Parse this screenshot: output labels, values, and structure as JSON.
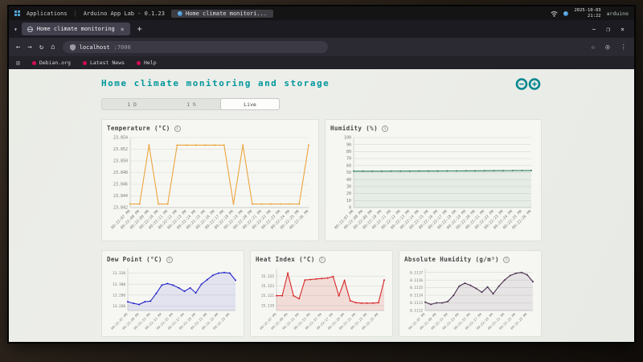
{
  "taskbar": {
    "applications_label": "Applications",
    "app_title": "Arduino App Lab - 0.1.23",
    "window_button": "Home climate monitori...",
    "clock_date": "2025-10-03",
    "clock_time": "21:22",
    "device_name": "arduino"
  },
  "browser": {
    "tab_title": "Home climate monitoring",
    "new_tab_label": "+",
    "url_host": "localhost",
    "url_port": ":7000",
    "bookmarks": [
      "Debian.org",
      "Latest News",
      "Help"
    ],
    "window_controls": {
      "minimize": "−",
      "maximize": "❐",
      "close": "×"
    }
  },
  "page": {
    "title": "Home climate monitoring and storage",
    "range_buttons": [
      {
        "label": "1 D",
        "active": false
      },
      {
        "label": "1 h",
        "active": false
      },
      {
        "label": "Live",
        "active": true
      }
    ]
  },
  "colors": {
    "accent_teal": "#00979c",
    "temperature": "#eda33c",
    "humidity": "#2e7d5b",
    "dew_point": "#2323cc",
    "heat_index": "#d62828",
    "absolute_humidity": "#4a3050"
  },
  "chart_data": [
    {
      "type": "line",
      "title": "Temperature (°C)",
      "color": "#eda33c",
      "fill": null,
      "x": [
        "09:22:07 PM",
        "09:22:08 PM",
        "09:22:09 PM",
        "09:22:10 PM",
        "09:22:11 PM",
        "09:22:12 PM",
        "09:22:13 PM",
        "09:22:14 PM",
        "09:22:15 PM",
        "09:22:16 PM",
        "09:22:17 PM",
        "09:22:18 PM",
        "09:22:19 PM",
        "09:22:20 PM",
        "09:22:21 PM",
        "09:22:22 PM",
        "09:22:23 PM",
        "09:22:24 PM",
        "09:22:25 PM",
        "09:22:26 PM"
      ],
      "values": [
        23.8426,
        23.8426,
        23.8527,
        23.8426,
        23.8426,
        23.8527,
        23.8527,
        23.8527,
        23.8527,
        23.8527,
        23.8527,
        23.8426,
        23.8527,
        23.8426,
        23.8426,
        23.8426,
        23.8426,
        23.8426,
        23.8426,
        23.8527
      ],
      "ylim": [
        23.842,
        23.854
      ],
      "yticks": [
        23.842,
        23.844,
        23.846,
        23.848,
        23.85,
        23.852,
        23.854
      ],
      "ytick_labels": [
        "23.842",
        "23.844",
        "23.846",
        "23.848",
        "23.850",
        "23.852",
        "23.854"
      ],
      "x_label_step": 1
    },
    {
      "type": "line",
      "title": "Humidity (%)",
      "color": "#2e7d5b",
      "fill": "rgba(46,125,91,0.08)",
      "x": [
        "09:22:07 PM",
        "09:22:08 PM",
        "09:22:09 PM",
        "09:22:10 PM",
        "09:22:11 PM",
        "09:22:12 PM",
        "09:22:13 PM",
        "09:22:14 PM",
        "09:22:15 PM",
        "09:22:16 PM",
        "09:22:17 PM",
        "09:22:18 PM",
        "09:22:19 PM",
        "09:22:20 PM",
        "09:22:21 PM",
        "09:22:22 PM",
        "09:22:23 PM",
        "09:22:24 PM",
        "09:22:25 PM",
        "09:22:26 PM"
      ],
      "values": [
        52,
        52,
        52,
        52,
        52.1,
        52.1,
        52.1,
        52.2,
        52.2,
        52.2,
        52.3,
        52.3,
        52.4,
        52.4,
        52.5,
        52.6,
        52.7,
        52.8,
        52.9,
        53
      ],
      "ylim": [
        0,
        100
      ],
      "yticks": [
        0,
        10,
        20,
        30,
        40,
        50,
        60,
        70,
        80,
        90,
        100
      ],
      "ytick_labels": [
        "0",
        "10",
        "20",
        "30",
        "40",
        "50",
        "60",
        "70",
        "80",
        "90",
        "100"
      ],
      "x_label_step": 1
    },
    {
      "type": "line",
      "title": "Dew Point (°C)",
      "color": "#2323cc",
      "fill": "rgba(35,35,204,0.09)",
      "x": [
        "09:22:07 PM",
        "09:22:08 PM",
        "09:22:09 PM",
        "09:22:10 PM",
        "09:22:11 PM",
        "09:22:12 PM",
        "09:22:13 PM",
        "09:22:14 PM",
        "09:22:15 PM",
        "09:22:16 PM",
        "09:22:17 PM",
        "09:22:18 PM",
        "09:22:19 PM",
        "09:22:20 PM",
        "09:22:21 PM",
        "09:22:22 PM",
        "09:22:23 PM",
        "09:22:24 PM",
        "09:22:25 PM",
        "09:22:26 PM"
      ],
      "values": [
        13.268,
        13.265,
        13.263,
        13.268,
        13.269,
        13.283,
        13.298,
        13.301,
        13.298,
        13.293,
        13.287,
        13.293,
        13.284,
        13.3,
        13.308,
        13.316,
        13.32,
        13.321,
        13.32,
        13.307
      ],
      "ylim": [
        13.252,
        13.328
      ],
      "yticks": [
        13.26,
        13.28,
        13.3,
        13.32
      ],
      "ytick_labels": [
        "13.260",
        "13.280",
        "13.300",
        "13.320"
      ],
      "x_label_step": 2
    },
    {
      "type": "line",
      "title": "Heat Index (°C)",
      "color": "#d62828",
      "fill": "rgba(214,40,40,0.13)",
      "x": [
        "09:22:07 PM",
        "09:22:08 PM",
        "09:22:09 PM",
        "09:22:10 PM",
        "09:22:11 PM",
        "09:22:12 PM",
        "09:22:13 PM",
        "09:22:14 PM",
        "09:22:15 PM",
        "09:22:16 PM",
        "09:22:17 PM",
        "09:22:18 PM",
        "09:22:19 PM",
        "09:22:20 PM",
        "09:22:21 PM",
        "09:22:22 PM",
        "09:22:23 PM",
        "09:22:24 PM",
        "09:22:25 PM",
        "09:22:26 PM"
      ],
      "values": [
        25.321,
        25.321,
        25.3256,
        25.321,
        25.3204,
        25.3242,
        25.3243,
        25.3244,
        25.3245,
        25.3246,
        25.3249,
        25.321,
        25.3241,
        25.32,
        25.3196,
        25.3195,
        25.3195,
        25.3195,
        25.3196,
        25.3242
      ],
      "ylim": [
        25.318,
        25.3265
      ],
      "yticks": [
        25.319,
        25.321,
        25.323,
        25.325
      ],
      "ytick_labels": [
        "25.319",
        "25.321",
        "25.323",
        "25.325"
      ],
      "x_label_step": 2
    },
    {
      "type": "line",
      "title": "Absolute Humidity (g/m³)",
      "color": "#4a3050",
      "fill": "rgba(74,48,80,0.09)",
      "x": [
        "09:22:07 PM",
        "09:22:08 PM",
        "09:22:09 PM",
        "09:22:10 PM",
        "09:22:11 PM",
        "09:22:12 PM",
        "09:22:13 PM",
        "09:22:14 PM",
        "09:22:15 PM",
        "09:22:16 PM",
        "09:22:17 PM",
        "09:22:18 PM",
        "09:22:19 PM",
        "09:22:20 PM",
        "09:22:21 PM",
        "09:22:22 PM",
        "09:22:23 PM",
        "09:22:24 PM",
        "09:22:25 PM",
        "09:22:26 PM"
      ],
      "values": [
        0.11131,
        0.11128,
        0.1113,
        0.1113,
        0.11132,
        0.1114,
        0.11152,
        0.11156,
        0.11153,
        0.11149,
        0.11144,
        0.11151,
        0.11142,
        0.11152,
        0.1116,
        0.11166,
        0.11169,
        0.1117,
        0.11167,
        0.11158
      ],
      "ylim": [
        0.1112,
        0.11175
      ],
      "yticks": [
        0.1112,
        0.1113,
        0.1114,
        0.1115,
        0.1116,
        0.1117
      ],
      "ytick_labels": [
        "0.1112",
        "0.1113",
        "0.1114",
        "0.1115",
        "0.1116",
        "0.1117"
      ],
      "x_label_step": 2
    }
  ]
}
